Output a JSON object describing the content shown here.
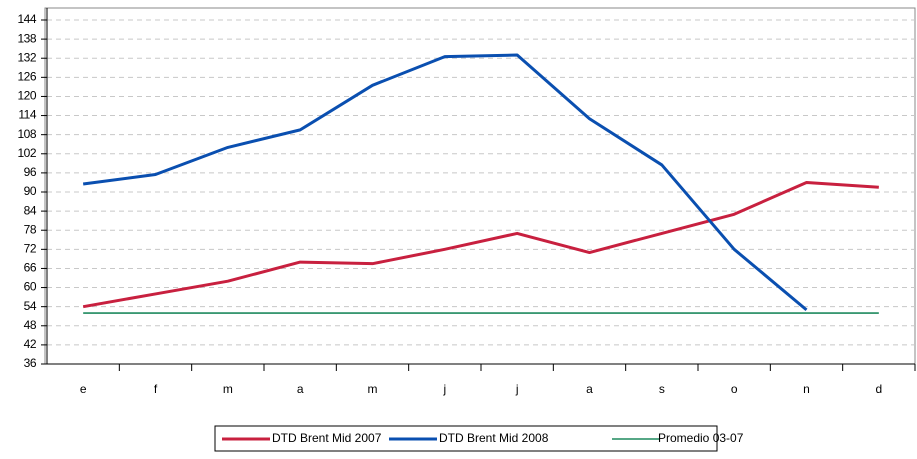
{
  "chart_data": {
    "type": "line",
    "categories": [
      "e",
      "f",
      "m",
      "a",
      "m",
      "j",
      "j",
      "a",
      "s",
      "o",
      "n",
      "d"
    ],
    "series": [
      {
        "name": "DTD Brent Mid 2007",
        "color": "#c8203f",
        "values": [
          54,
          58,
          62,
          68,
          67.5,
          72,
          77,
          71,
          77,
          83,
          93,
          91.5
        ]
      },
      {
        "name": "DTD Brent Mid 2008",
        "color": "#0a4fb0",
        "values": [
          92.5,
          95.5,
          104,
          109.5,
          123.5,
          132.5,
          133,
          113,
          98.5,
          72,
          53,
          null
        ]
      },
      {
        "name": "Promedio 03-07",
        "color": "#1e8a5e",
        "values": [
          52,
          52,
          52,
          52,
          52,
          52,
          52,
          52,
          52,
          52,
          52,
          52
        ]
      }
    ],
    "ylim": [
      36,
      144
    ],
    "yticks": [
      36,
      42,
      48,
      54,
      60,
      66,
      72,
      78,
      84,
      90,
      96,
      102,
      108,
      114,
      120,
      126,
      132,
      138,
      144
    ],
    "grid": true
  }
}
